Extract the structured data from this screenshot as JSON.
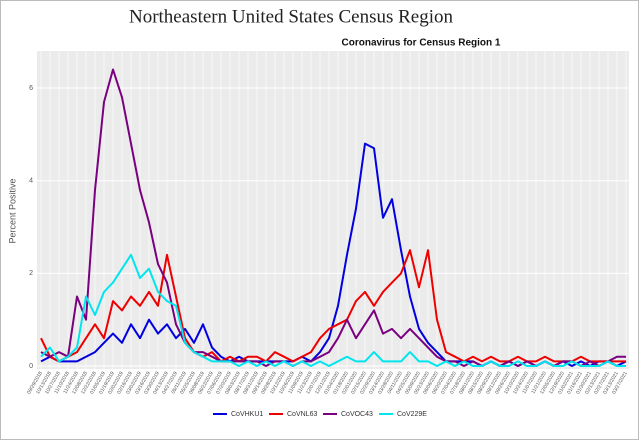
{
  "chart_data": {
    "type": "line",
    "title": "Northeastern United States Census Region",
    "subtitle": "Coronavirus for Census Region 1",
    "y_label": "Percent Positive",
    "categories": [
      "09/29/2018",
      "10/13/2018",
      "10/27/2018",
      "11/10/2018",
      "11/24/2018",
      "12/08/2018",
      "12/22/2018",
      "01/05/2019",
      "01/19/2019",
      "02/02/2019",
      "02/16/2019",
      "03/02/2019",
      "03/16/2019",
      "03/30/2019",
      "04/13/2019",
      "04/27/2019",
      "05/11/2019",
      "05/25/2019",
      "06/08/2019",
      "06/22/2019",
      "07/06/2019",
      "07/20/2019",
      "08/03/2019",
      "08/17/2019",
      "08/31/2019",
      "09/14/2019",
      "09/28/2019",
      "10/12/2019",
      "10/26/2019",
      "11/09/2019",
      "11/23/2019",
      "12/07/2019",
      "12/21/2019",
      "01/04/2020",
      "01/18/2020",
      "02/01/2020",
      "02/15/2020",
      "02/29/2020",
      "03/14/2020",
      "03/28/2020",
      "04/11/2020",
      "04/25/2020",
      "05/09/2020",
      "05/23/2020",
      "06/06/2020",
      "06/20/2020",
      "07/04/2020",
      "07/18/2020",
      "08/01/2020",
      "08/15/2020",
      "08/29/2020",
      "09/12/2020",
      "09/26/2020",
      "10/10/2020",
      "10/24/2020",
      "11/07/2020",
      "11/21/2020",
      "12/05/2020",
      "12/19/2020",
      "01/02/2021",
      "01/16/2021",
      "01/30/2021",
      "02/13/2021",
      "02/27/2021",
      "03/13/2021",
      "03/27/2021"
    ],
    "series": [
      {
        "name": "CoVHKU1",
        "color": "#0000e0",
        "values": [
          0.1,
          0.2,
          0.1,
          0.1,
          0.1,
          0.2,
          0.3,
          0.5,
          0.7,
          0.5,
          0.9,
          0.6,
          1.0,
          0.7,
          0.9,
          0.6,
          0.8,
          0.5,
          0.9,
          0.4,
          0.2,
          0.1,
          0.2,
          0.1,
          0.1,
          0.1,
          0.1,
          0.1,
          0.1,
          0.2,
          0.1,
          0.3,
          0.6,
          1.3,
          2.4,
          3.4,
          4.8,
          4.7,
          3.2,
          3.6,
          2.5,
          1.5,
          0.8,
          0.5,
          0.3,
          0.1,
          0.1,
          0.1,
          0.1,
          0.0,
          0.1,
          0.0,
          0.1,
          0.0,
          0.1,
          0.0,
          0.1,
          0.0,
          0.1,
          0.0,
          0.1,
          0.0,
          0.1,
          0.1,
          0.0,
          0.1
        ]
      },
      {
        "name": "CoVNL63",
        "color": "#ee0000",
        "values": [
          0.6,
          0.2,
          0.1,
          0.2,
          0.3,
          0.6,
          0.9,
          0.6,
          1.4,
          1.2,
          1.5,
          1.3,
          1.6,
          1.3,
          2.4,
          1.5,
          0.6,
          0.3,
          0.2,
          0.3,
          0.1,
          0.2,
          0.1,
          0.2,
          0.2,
          0.1,
          0.3,
          0.2,
          0.1,
          0.2,
          0.3,
          0.6,
          0.8,
          0.9,
          1.0,
          1.4,
          1.6,
          1.3,
          1.6,
          1.8,
          2.0,
          2.5,
          1.7,
          2.5,
          1.0,
          0.3,
          0.2,
          0.1,
          0.2,
          0.1,
          0.2,
          0.1,
          0.1,
          0.2,
          0.1,
          0.1,
          0.2,
          0.1,
          0.1,
          0.1,
          0.2,
          0.1,
          0.1,
          0.1,
          0.1,
          0.1
        ]
      },
      {
        "name": "CoVOC43",
        "color": "#7a0080",
        "values": [
          0.3,
          0.2,
          0.3,
          0.2,
          1.5,
          1.0,
          3.8,
          5.7,
          6.4,
          5.8,
          4.8,
          3.8,
          3.1,
          2.2,
          1.8,
          0.9,
          0.5,
          0.3,
          0.3,
          0.2,
          0.1,
          0.1,
          0.1,
          0.1,
          0.1,
          0.0,
          0.1,
          0.1,
          0.0,
          0.1,
          0.1,
          0.2,
          0.3,
          0.6,
          1.0,
          0.6,
          0.9,
          1.2,
          0.7,
          0.8,
          0.6,
          0.8,
          0.6,
          0.4,
          0.2,
          0.1,
          0.1,
          0.0,
          0.1,
          0.0,
          0.1,
          0.0,
          0.1,
          0.0,
          0.1,
          0.0,
          0.1,
          0.0,
          0.1,
          0.1,
          0.0,
          0.1,
          0.0,
          0.1,
          0.2,
          0.2
        ]
      },
      {
        "name": "CoV229E",
        "color": "#00e5ee",
        "values": [
          0.2,
          0.4,
          0.1,
          0.2,
          0.4,
          1.5,
          1.1,
          1.6,
          1.8,
          2.1,
          2.4,
          1.9,
          2.1,
          1.6,
          1.4,
          1.3,
          0.5,
          0.3,
          0.2,
          0.1,
          0.1,
          0.1,
          0.0,
          0.1,
          0.0,
          0.1,
          0.0,
          0.1,
          0.0,
          0.1,
          0.0,
          0.1,
          0.0,
          0.1,
          0.2,
          0.1,
          0.1,
          0.3,
          0.1,
          0.1,
          0.1,
          0.3,
          0.1,
          0.1,
          0.0,
          0.1,
          0.0,
          0.1,
          0.0,
          0.0,
          0.1,
          0.0,
          0.0,
          0.1,
          0.0,
          0.0,
          0.1,
          0.0,
          0.0,
          0.1,
          0.0,
          0.0,
          0.0,
          0.1,
          0.0,
          0.0
        ]
      }
    ],
    "ylim": [
      0,
      6.8
    ],
    "yticks": [
      0,
      2,
      4,
      6
    ],
    "grid": true,
    "legend": "bottom"
  }
}
